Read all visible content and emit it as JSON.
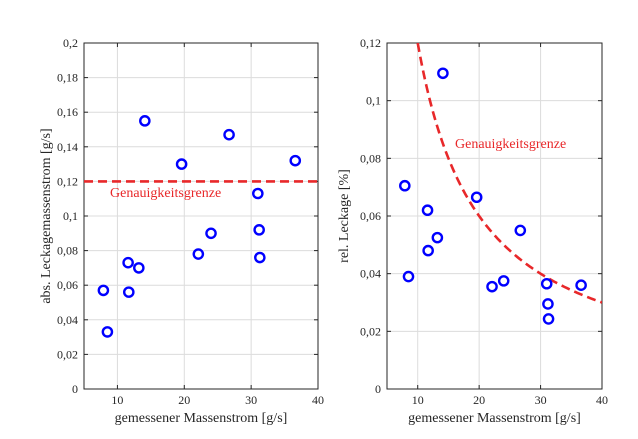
{
  "chart_data": [
    {
      "type": "scatter",
      "title": "",
      "xlabel": "gemessener Massenstrom [g/s]",
      "ylabel": "abs. Leckagemassenstrom [g/s]",
      "xlim": [
        5,
        40
      ],
      "ylim": [
        0,
        0.2
      ],
      "xticks": [
        "10",
        "20",
        "30",
        "40"
      ],
      "yticks": [
        "0",
        "0,02",
        "0,04",
        "0,06",
        "0,08",
        "0,1",
        "0,12",
        "0,14",
        "0,16",
        "0,18",
        "0,2"
      ],
      "grid": true,
      "marker_color": "#0000ff",
      "points": [
        {
          "x": 7.9,
          "y": 0.057
        },
        {
          "x": 8.5,
          "y": 0.033
        },
        {
          "x": 11.6,
          "y": 0.073
        },
        {
          "x": 11.7,
          "y": 0.056
        },
        {
          "x": 13.2,
          "y": 0.07
        },
        {
          "x": 14.1,
          "y": 0.155
        },
        {
          "x": 19.6,
          "y": 0.13
        },
        {
          "x": 22.1,
          "y": 0.078
        },
        {
          "x": 24.0,
          "y": 0.09
        },
        {
          "x": 26.7,
          "y": 0.147
        },
        {
          "x": 31.0,
          "y": 0.113
        },
        {
          "x": 31.2,
          "y": 0.092
        },
        {
          "x": 31.3,
          "y": 0.076
        },
        {
          "x": 36.6,
          "y": 0.132
        }
      ],
      "reference": {
        "type": "horizontal",
        "y": 0.12,
        "color": "#e8282a",
        "label": "Genauigkeitsgrenze"
      }
    },
    {
      "type": "scatter",
      "title": "",
      "xlabel": "gemessener Massenstrom [g/s]",
      "ylabel": "rel. Leckage [%]",
      "xlim": [
        5,
        40
      ],
      "ylim": [
        0,
        0.12
      ],
      "xticks": [
        "10",
        "20",
        "30",
        "40"
      ],
      "yticks": [
        "0",
        "0,02",
        "0,04",
        "0,06",
        "0,08",
        "0,1",
        "0,12"
      ],
      "grid": true,
      "marker_color": "#0000ff",
      "points": [
        {
          "x": 7.9,
          "y": 0.0705
        },
        {
          "x": 8.5,
          "y": 0.039
        },
        {
          "x": 11.6,
          "y": 0.062
        },
        {
          "x": 11.7,
          "y": 0.048
        },
        {
          "x": 13.2,
          "y": 0.0525
        },
        {
          "x": 14.1,
          "y": 0.1095
        },
        {
          "x": 19.6,
          "y": 0.0665
        },
        {
          "x": 22.1,
          "y": 0.0355
        },
        {
          "x": 24.0,
          "y": 0.0375
        },
        {
          "x": 26.7,
          "y": 0.055
        },
        {
          "x": 31.0,
          "y": 0.0365
        },
        {
          "x": 31.2,
          "y": 0.0295
        },
        {
          "x": 31.3,
          "y": 0.0243
        },
        {
          "x": 36.6,
          "y": 0.036
        }
      ],
      "reference": {
        "type": "curve",
        "formula": "y = 1.2 / x",
        "x_from": 10,
        "x_to": 40,
        "color": "#e8282a",
        "label": "Genauigkeitsgrenze"
      }
    }
  ]
}
